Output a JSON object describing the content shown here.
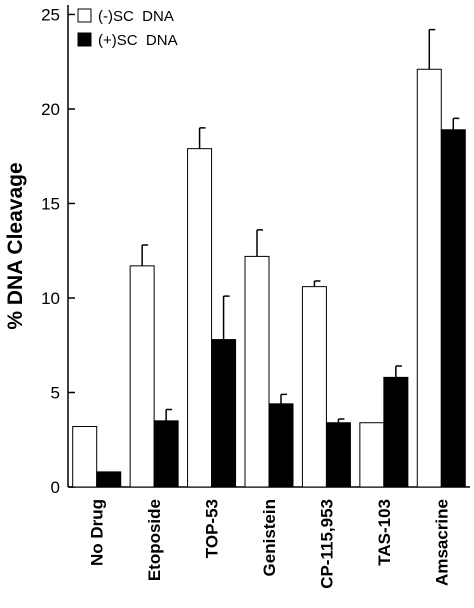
{
  "chart_data": {
    "type": "bar",
    "ylabel": "% DNA Cleavage",
    "categories": [
      "No Drug",
      "Etoposide",
      "TOP-53",
      "Genistein",
      "CP-115,953",
      "TAS-103",
      "Amsacrine"
    ],
    "series": [
      {
        "name": "(-)SC  DNA",
        "color": "#ffffff",
        "values": [
          3.2,
          11.7,
          17.9,
          12.2,
          10.6,
          3.4,
          22.1
        ],
        "errors": [
          null,
          1.1,
          1.1,
          1.4,
          0.3,
          null,
          2.1
        ]
      },
      {
        "name": "(+)SC  DNA",
        "color": "#000000",
        "values": [
          0.8,
          3.5,
          7.8,
          4.4,
          3.4,
          5.8,
          18.9
        ],
        "errors": [
          null,
          0.6,
          2.3,
          0.5,
          0.2,
          0.6,
          0.6
        ]
      }
    ],
    "ylim": [
      0,
      25.5
    ],
    "yticks": [
      0,
      5,
      10,
      15,
      20,
      25
    ],
    "legend": "upper left"
  }
}
